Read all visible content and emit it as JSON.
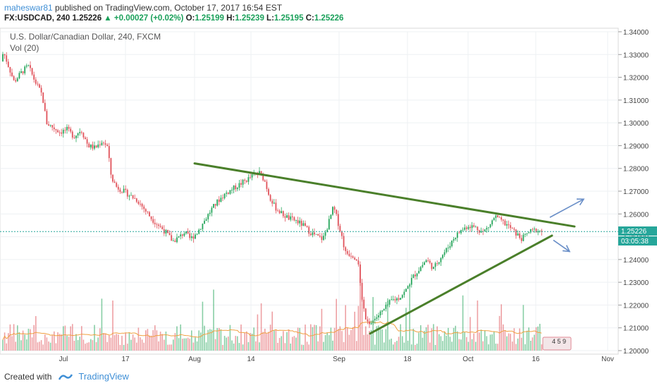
{
  "header": {
    "user": "maheswar81",
    "published": "published on TradingView.com, October 17, 2017 16:54 EST",
    "symbol": "FX:USDCAD, 240",
    "last": "1.25226",
    "change": "+0.00027 (+0.02%)",
    "o_label": "O:",
    "o_value": "1.25199",
    "h_label": "H:",
    "h_value": "1.25239",
    "l_label": "L:",
    "l_value": "1.25195",
    "c_label": "C:",
    "c_value": "1.25226"
  },
  "chart_title": "U.S. Dollar/Canadian Dollar, 240, FXCM",
  "volume_title": "Vol (20)",
  "footer": {
    "created_with": "Created with",
    "brand": "TradingView"
  },
  "price_tag": "1.25226",
  "countdown_tag": "03:05:38",
  "event_badge": "4 5 9",
  "colors": {
    "up": "#26a65b",
    "down": "#e0525a",
    "trendline": "#4a7f2a",
    "arrow": "#6a8fc8",
    "price_line": "#26a69a",
    "volume_ma": "#f0a040"
  },
  "chart_data": {
    "type": "candlestick",
    "y_axis": {
      "min": 1.2,
      "max": 1.34,
      "ticks": [
        "1.34000",
        "1.33000",
        "1.32000",
        "1.31000",
        "1.30000",
        "1.29000",
        "1.28000",
        "1.27000",
        "1.26000",
        "1.25000",
        "1.24000",
        "1.23000",
        "1.22000",
        "1.21000",
        "1.20000"
      ]
    },
    "x_axis": {
      "ticks": [
        "Jul",
        "17",
        "Aug",
        "14",
        "Sep",
        "18",
        "Oct",
        "16",
        "Nov"
      ]
    },
    "current_price": 1.25226,
    "price_path": [
      [
        0,
        1.327
      ],
      [
        5,
        1.331
      ],
      [
        12,
        1.325
      ],
      [
        20,
        1.318
      ],
      [
        30,
        1.322
      ],
      [
        40,
        1.325
      ],
      [
        50,
        1.318
      ],
      [
        60,
        1.312
      ],
      [
        66,
        1.3
      ],
      [
        75,
        1.298
      ],
      [
        85,
        1.296
      ],
      [
        95,
        1.297
      ],
      [
        105,
        1.294
      ],
      [
        115,
        1.297
      ],
      [
        125,
        1.29
      ],
      [
        135,
        1.289
      ],
      [
        145,
        1.292
      ],
      [
        152,
        1.29
      ],
      [
        158,
        1.276
      ],
      [
        165,
        1.272
      ],
      [
        175,
        1.27
      ],
      [
        185,
        1.268
      ],
      [
        195,
        1.266
      ],
      [
        205,
        1.262
      ],
      [
        215,
        1.258
      ],
      [
        225,
        1.255
      ],
      [
        235,
        1.252
      ],
      [
        245,
        1.248
      ],
      [
        255,
        1.25
      ],
      [
        262,
        1.252
      ],
      [
        270,
        1.249
      ],
      [
        280,
        1.252
      ],
      [
        290,
        1.257
      ],
      [
        300,
        1.262
      ],
      [
        310,
        1.266
      ],
      [
        320,
        1.269
      ],
      [
        330,
        1.271
      ],
      [
        340,
        1.273
      ],
      [
        350,
        1.275
      ],
      [
        360,
        1.277
      ],
      [
        368,
        1.278
      ],
      [
        375,
        1.275
      ],
      [
        382,
        1.268
      ],
      [
        390,
        1.263
      ],
      [
        400,
        1.26
      ],
      [
        410,
        1.258
      ],
      [
        420,
        1.257
      ],
      [
        430,
        1.255
      ],
      [
        440,
        1.252
      ],
      [
        450,
        1.25
      ],
      [
        458,
        1.249
      ],
      [
        463,
        1.253
      ],
      [
        468,
        1.258
      ],
      [
        473,
        1.263
      ],
      [
        478,
        1.258
      ],
      [
        485,
        1.25
      ],
      [
        490,
        1.243
      ],
      [
        500,
        1.242
      ],
      [
        508,
        1.24
      ],
      [
        512,
        1.226
      ],
      [
        518,
        1.215
      ],
      [
        525,
        1.212
      ],
      [
        535,
        1.215
      ],
      [
        545,
        1.218
      ],
      [
        555,
        1.222
      ],
      [
        565,
        1.223
      ],
      [
        575,
        1.226
      ],
      [
        585,
        1.232
      ],
      [
        595,
        1.236
      ],
      [
        605,
        1.24
      ],
      [
        615,
        1.236
      ],
      [
        625,
        1.241
      ],
      [
        635,
        1.245
      ],
      [
        645,
        1.25
      ],
      [
        655,
        1.253
      ],
      [
        665,
        1.255
      ],
      [
        675,
        1.254
      ],
      [
        685,
        1.252
      ],
      [
        695,
        1.255
      ],
      [
        702,
        1.259
      ],
      [
        710,
        1.257
      ],
      [
        720,
        1.255
      ],
      [
        730,
        1.252
      ],
      [
        740,
        1.249
      ],
      [
        750,
        1.252
      ],
      [
        760,
        1.253
      ],
      [
        770,
        1.2522
      ]
    ],
    "trendlines": [
      {
        "name": "resistance",
        "from": [
          "Aug 1",
          1.2822
        ],
        "to": [
          "Oct 24",
          1.2545
        ]
      },
      {
        "name": "support",
        "from": [
          "Sep 9",
          1.2075
        ],
        "to": [
          "Oct 19",
          1.2505
        ]
      }
    ],
    "arrows": [
      {
        "direction": "up",
        "from": [
          780,
          1.2585
        ],
        "to": [
          828,
          1.2665
        ]
      },
      {
        "direction": "down",
        "from": [
          785,
          1.2485
        ],
        "to": [
          808,
          1.2435
        ]
      }
    ]
  }
}
